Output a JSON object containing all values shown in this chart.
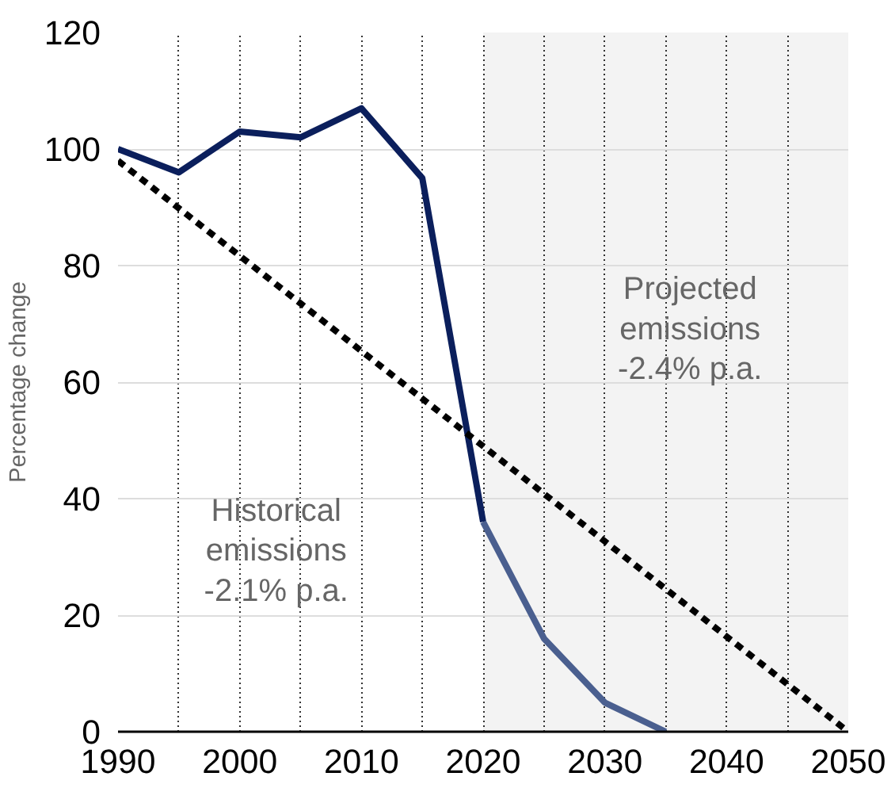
{
  "chart_data": {
    "type": "line",
    "ylabel": "Percentage change",
    "xlim": [
      1990,
      2050
    ],
    "ylim": [
      0,
      120
    ],
    "xticks": [
      1990,
      {
        "value": 1995,
        "label": null
      },
      2000,
      {
        "value": 2005,
        "label": null
      },
      2010,
      {
        "value": 2015,
        "label": null
      },
      2020,
      {
        "value": 2025,
        "label": null
      },
      2030,
      {
        "value": 2035,
        "label": null
      },
      2040,
      {
        "value": 2045,
        "label": null
      },
      2050
    ],
    "yticks": [
      0,
      20,
      40,
      60,
      80,
      100,
      120
    ],
    "grid": true,
    "marker": "none",
    "series": [
      {
        "color": "#0b1f5c",
        "x": [
          1990,
          1995,
          2000,
          2005,
          2010,
          2015,
          2020
        ],
        "values": [
          100,
          96,
          103,
          102,
          107,
          95,
          36
        ],
        "line_style": "solid"
      },
      {
        "color": "#4a5f8f",
        "x": [
          2020,
          2025,
          2030,
          2035
        ],
        "values": [
          36,
          16,
          5,
          0
        ],
        "line_style": "solid"
      },
      {
        "color": "#000000",
        "x": [
          1990,
          2050
        ],
        "values": [
          98,
          0
        ],
        "line_style": "dashed"
      }
    ],
    "bands": [
      {
        "axis": "x",
        "from": 2020,
        "to": 2050,
        "color": "#f3f3f3"
      }
    ],
    "annotations": [
      "Historical\nemissions\n-2.1% p.a.",
      "Projected\nemissions\n-2.4% p.a."
    ]
  }
}
